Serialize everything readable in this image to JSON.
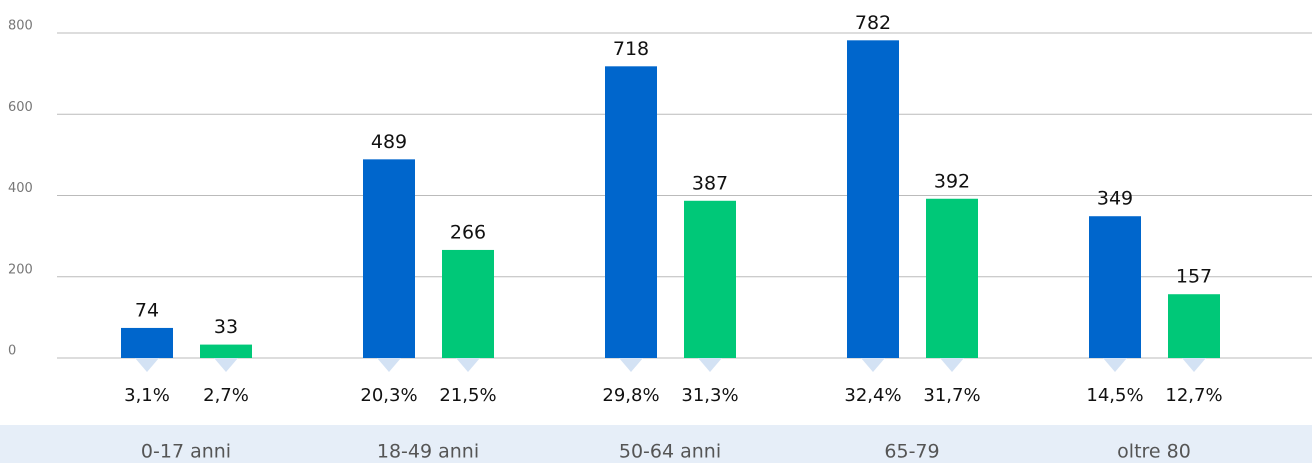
{
  "chart_data": {
    "type": "bar",
    "categories": [
      "0-17 anni",
      "18-49 anni",
      "50-64 anni",
      "65-79",
      "oltre 80"
    ],
    "series": [
      {
        "color": "#0066cc",
        "values": [
          74,
          489,
          718,
          782,
          349
        ],
        "share_labels": [
          "3,1%",
          "20,3%",
          "29,8%",
          "32,4%",
          "14,5%"
        ]
      },
      {
        "color": "#00c878",
        "values": [
          33,
          266,
          387,
          392,
          157
        ],
        "share_labels": [
          "2,7%",
          "21,5%",
          "31,3%",
          "31,7%",
          "12,7%"
        ]
      }
    ],
    "ylim": [
      0,
      800
    ],
    "yticks": [
      0,
      200,
      400,
      600,
      800
    ],
    "grid": true
  }
}
